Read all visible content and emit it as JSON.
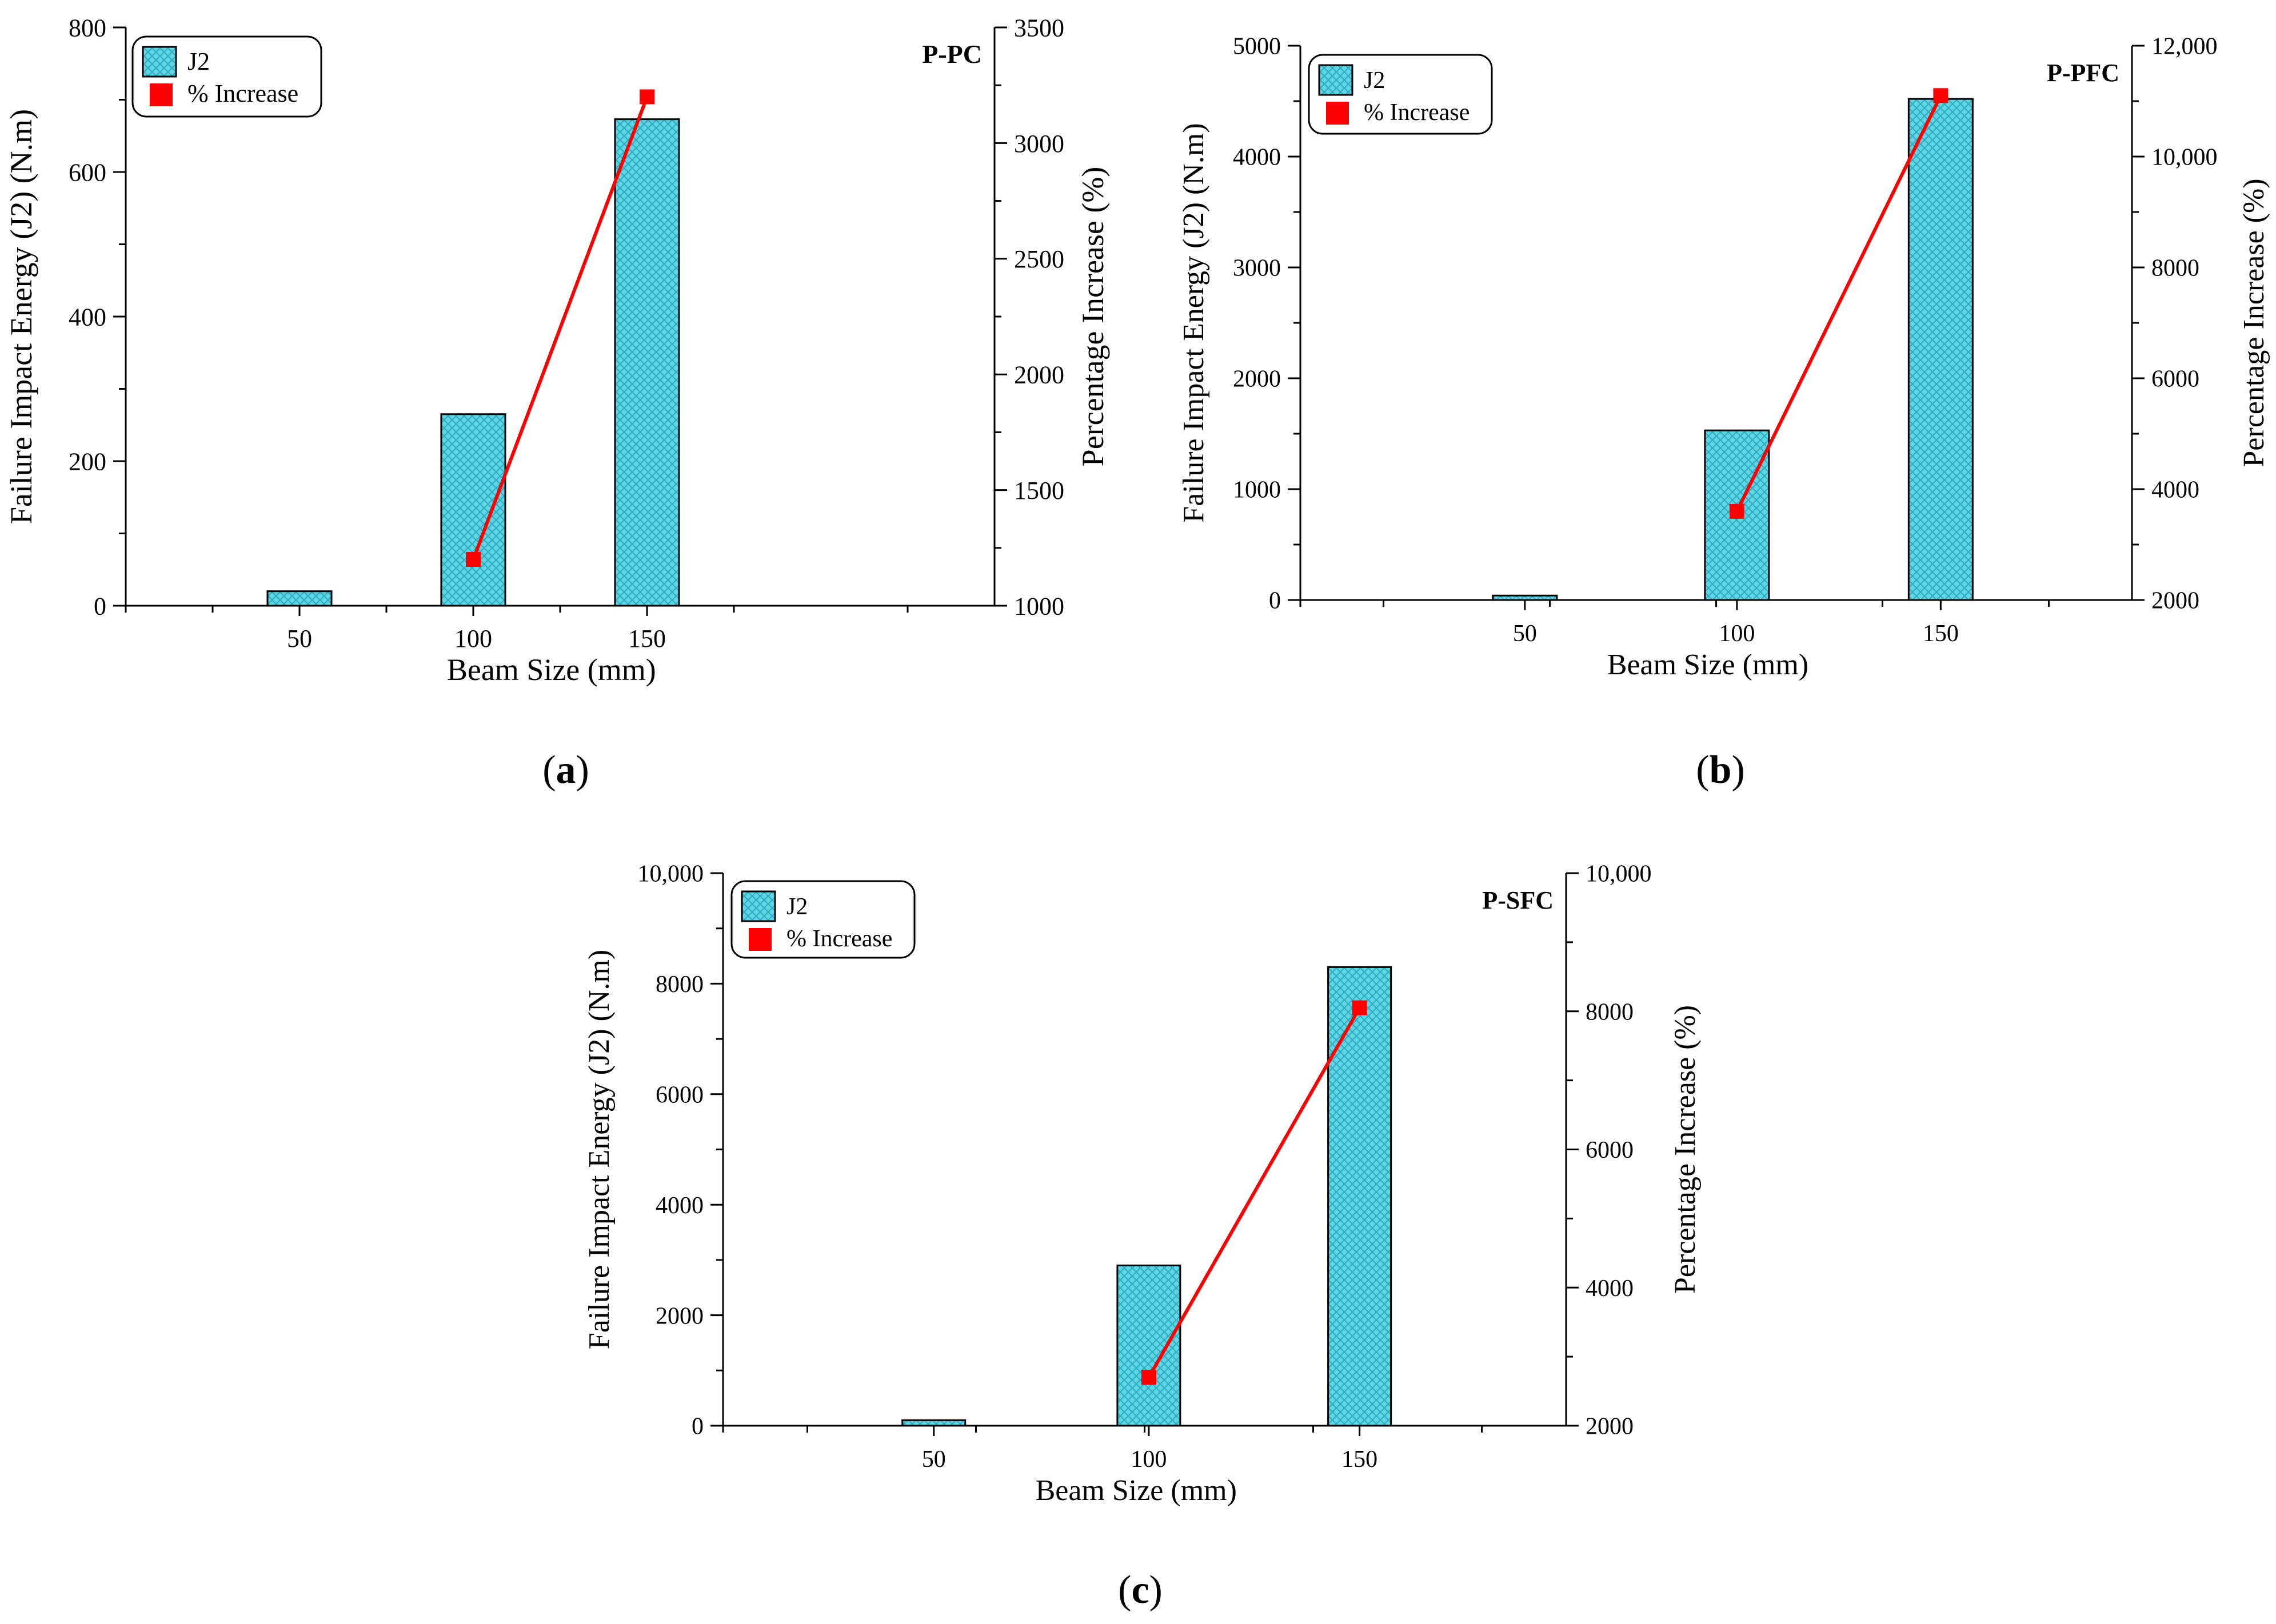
{
  "colors": {
    "bar_fill": "#5fd6e6",
    "bar_pattern": "#2ea9bd",
    "line": "#ff0000",
    "marker": "#ff0000",
    "axis": "#000000"
  },
  "chart_data": [
    {
      "panel": "(a)",
      "panel_letter": "a",
      "type": "bar",
      "title": "P-PC",
      "xlabel": "Beam Size (mm)",
      "ylabel": "Failure Impact Energy (J2) (N.m)",
      "y2label": "Percentage Increase (%)",
      "categories": [
        "50",
        "100",
        "150"
      ],
      "ylim": [
        0,
        800
      ],
      "y_ticks": [
        "0",
        "200",
        "400",
        "600",
        "800"
      ],
      "y2lim": [
        1000,
        3500
      ],
      "y2_ticks": [
        "1000",
        "1500",
        "2000",
        "2500",
        "3000",
        "3500"
      ],
      "series": [
        {
          "name": "J2",
          "type": "bar",
          "values": [
            20,
            265,
            673
          ]
        },
        {
          "name": "% Increase",
          "type": "line",
          "axis": "right",
          "values": [
            null,
            1200,
            3200
          ]
        }
      ],
      "legend": [
        "J2",
        "% Increase"
      ],
      "legend_position": "top-left"
    },
    {
      "panel": "(b)",
      "panel_letter": "b",
      "type": "bar",
      "title": "P-PFC",
      "xlabel": "Beam Size (mm)",
      "ylabel": "Failure Impact Energy (J2) (N.m)",
      "y2label": "Percentage Increase (%)",
      "categories": [
        "50",
        "100",
        "150"
      ],
      "ylim": [
        0,
        5000
      ],
      "y_ticks": [
        "0",
        "1000",
        "2000",
        "3000",
        "4000",
        "5000"
      ],
      "y2lim": [
        2000,
        12000
      ],
      "y2_ticks": [
        "2000",
        "4000",
        "6000",
        "8000",
        "10,000",
        "12,000"
      ],
      "series": [
        {
          "name": "J2",
          "type": "bar",
          "values": [
            40,
            1530,
            4520
          ]
        },
        {
          "name": "% Increase",
          "type": "line",
          "axis": "right",
          "values": [
            null,
            3600,
            11100
          ]
        }
      ],
      "legend": [
        "J2",
        "% Increase"
      ],
      "legend_position": "top-left"
    },
    {
      "panel": "(c)",
      "panel_letter": "c",
      "type": "bar",
      "title": "P-SFC",
      "xlabel": "Beam Size (mm)",
      "ylabel": "Failure Impact Energy (J2) (N.m)",
      "y2label": "Percentage Increase (%)",
      "categories": [
        "50",
        "100",
        "150"
      ],
      "ylim": [
        0,
        10000
      ],
      "y_ticks": [
        "0",
        "2000",
        "4000",
        "6000",
        "8000",
        "10,000"
      ],
      "y2lim": [
        2000,
        10000
      ],
      "y2_ticks": [
        "2000",
        "4000",
        "6000",
        "8000",
        "10,000"
      ],
      "series": [
        {
          "name": "J2",
          "type": "bar",
          "values": [
            100,
            2900,
            8300
          ]
        },
        {
          "name": "% Increase",
          "type": "line",
          "axis": "right",
          "values": [
            null,
            2700,
            8050
          ]
        }
      ],
      "legend": [
        "J2",
        "% Increase"
      ],
      "legend_position": "top-left"
    }
  ]
}
